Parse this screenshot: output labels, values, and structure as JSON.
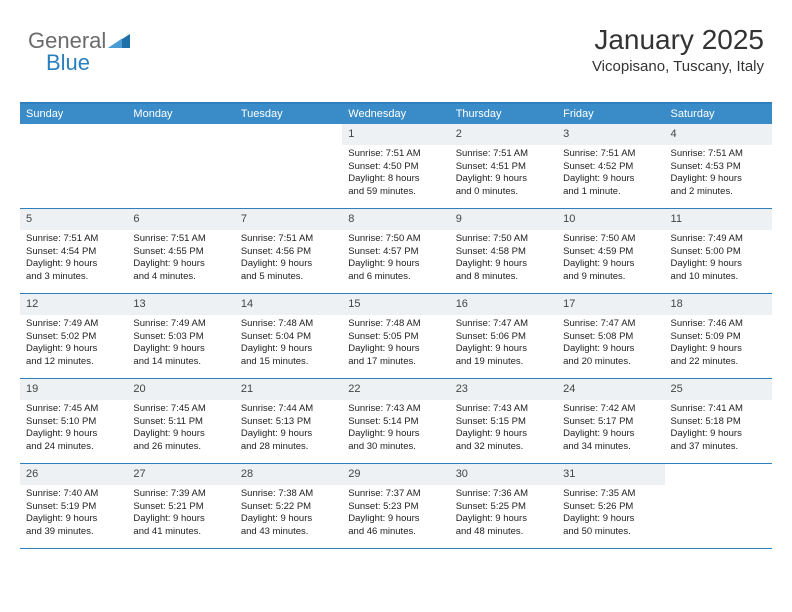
{
  "logo": {
    "text1": "General",
    "text2": "Blue",
    "color1": "#6b6b6b",
    "color2": "#2a7fbf",
    "triangle_color": "#1f6fa8"
  },
  "header": {
    "title": "January 2025",
    "location": "Vicopisano, Tuscany, Italy"
  },
  "colors": {
    "header_bar": "#3a8cc9",
    "border": "#2f7fbf",
    "num_bg": "#eef1f3",
    "text": "#222222"
  },
  "day_names": [
    "Sunday",
    "Monday",
    "Tuesday",
    "Wednesday",
    "Thursday",
    "Friday",
    "Saturday"
  ],
  "weeks": [
    [
      null,
      null,
      null,
      {
        "n": "1",
        "sr": "7:51 AM",
        "ss": "4:50 PM",
        "dl": "8 hours and 59 minutes."
      },
      {
        "n": "2",
        "sr": "7:51 AM",
        "ss": "4:51 PM",
        "dl": "9 hours and 0 minutes."
      },
      {
        "n": "3",
        "sr": "7:51 AM",
        "ss": "4:52 PM",
        "dl": "9 hours and 1 minute."
      },
      {
        "n": "4",
        "sr": "7:51 AM",
        "ss": "4:53 PM",
        "dl": "9 hours and 2 minutes."
      }
    ],
    [
      {
        "n": "5",
        "sr": "7:51 AM",
        "ss": "4:54 PM",
        "dl": "9 hours and 3 minutes."
      },
      {
        "n": "6",
        "sr": "7:51 AM",
        "ss": "4:55 PM",
        "dl": "9 hours and 4 minutes."
      },
      {
        "n": "7",
        "sr": "7:51 AM",
        "ss": "4:56 PM",
        "dl": "9 hours and 5 minutes."
      },
      {
        "n": "8",
        "sr": "7:50 AM",
        "ss": "4:57 PM",
        "dl": "9 hours and 6 minutes."
      },
      {
        "n": "9",
        "sr": "7:50 AM",
        "ss": "4:58 PM",
        "dl": "9 hours and 8 minutes."
      },
      {
        "n": "10",
        "sr": "7:50 AM",
        "ss": "4:59 PM",
        "dl": "9 hours and 9 minutes."
      },
      {
        "n": "11",
        "sr": "7:49 AM",
        "ss": "5:00 PM",
        "dl": "9 hours and 10 minutes."
      }
    ],
    [
      {
        "n": "12",
        "sr": "7:49 AM",
        "ss": "5:02 PM",
        "dl": "9 hours and 12 minutes."
      },
      {
        "n": "13",
        "sr": "7:49 AM",
        "ss": "5:03 PM",
        "dl": "9 hours and 14 minutes."
      },
      {
        "n": "14",
        "sr": "7:48 AM",
        "ss": "5:04 PM",
        "dl": "9 hours and 15 minutes."
      },
      {
        "n": "15",
        "sr": "7:48 AM",
        "ss": "5:05 PM",
        "dl": "9 hours and 17 minutes."
      },
      {
        "n": "16",
        "sr": "7:47 AM",
        "ss": "5:06 PM",
        "dl": "9 hours and 19 minutes."
      },
      {
        "n": "17",
        "sr": "7:47 AM",
        "ss": "5:08 PM",
        "dl": "9 hours and 20 minutes."
      },
      {
        "n": "18",
        "sr": "7:46 AM",
        "ss": "5:09 PM",
        "dl": "9 hours and 22 minutes."
      }
    ],
    [
      {
        "n": "19",
        "sr": "7:45 AM",
        "ss": "5:10 PM",
        "dl": "9 hours and 24 minutes."
      },
      {
        "n": "20",
        "sr": "7:45 AM",
        "ss": "5:11 PM",
        "dl": "9 hours and 26 minutes."
      },
      {
        "n": "21",
        "sr": "7:44 AM",
        "ss": "5:13 PM",
        "dl": "9 hours and 28 minutes."
      },
      {
        "n": "22",
        "sr": "7:43 AM",
        "ss": "5:14 PM",
        "dl": "9 hours and 30 minutes."
      },
      {
        "n": "23",
        "sr": "7:43 AM",
        "ss": "5:15 PM",
        "dl": "9 hours and 32 minutes."
      },
      {
        "n": "24",
        "sr": "7:42 AM",
        "ss": "5:17 PM",
        "dl": "9 hours and 34 minutes."
      },
      {
        "n": "25",
        "sr": "7:41 AM",
        "ss": "5:18 PM",
        "dl": "9 hours and 37 minutes."
      }
    ],
    [
      {
        "n": "26",
        "sr": "7:40 AM",
        "ss": "5:19 PM",
        "dl": "9 hours and 39 minutes."
      },
      {
        "n": "27",
        "sr": "7:39 AM",
        "ss": "5:21 PM",
        "dl": "9 hours and 41 minutes."
      },
      {
        "n": "28",
        "sr": "7:38 AM",
        "ss": "5:22 PM",
        "dl": "9 hours and 43 minutes."
      },
      {
        "n": "29",
        "sr": "7:37 AM",
        "ss": "5:23 PM",
        "dl": "9 hours and 46 minutes."
      },
      {
        "n": "30",
        "sr": "7:36 AM",
        "ss": "5:25 PM",
        "dl": "9 hours and 48 minutes."
      },
      {
        "n": "31",
        "sr": "7:35 AM",
        "ss": "5:26 PM",
        "dl": "9 hours and 50 minutes."
      },
      null
    ]
  ],
  "labels": {
    "sunrise": "Sunrise:",
    "sunset": "Sunset:",
    "daylight": "Daylight:"
  }
}
